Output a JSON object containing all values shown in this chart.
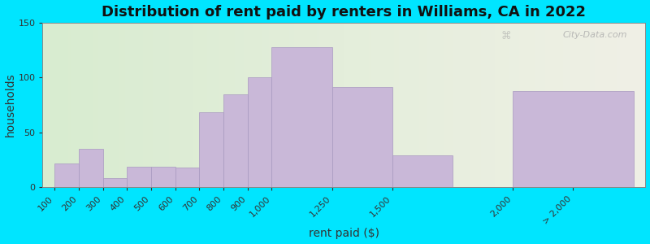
{
  "title": "Distribution of rent paid by renters in Williams, CA in 2022",
  "xlabel": "rent paid ($)",
  "ylabel": "households",
  "categories": [
    "100",
    "200",
    "300",
    "400",
    "500",
    "600",
    "700",
    "800",
    "900",
    "1,000",
    "1,250",
    "1,500",
    "2,000",
    "> 2,000"
  ],
  "values": [
    22,
    35,
    8,
    19,
    19,
    18,
    68,
    85,
    100,
    128,
    91,
    29,
    0,
    88
  ],
  "bar_color": "#c9b8d8",
  "bar_edgecolor": "#a898c0",
  "ylim": [
    0,
    150
  ],
  "yticks": [
    0,
    50,
    100,
    150
  ],
  "background_outer": "#00e5ff",
  "title_fontsize": 13,
  "axis_label_fontsize": 10,
  "tick_fontsize": 8,
  "watermark": "City-Data.com"
}
